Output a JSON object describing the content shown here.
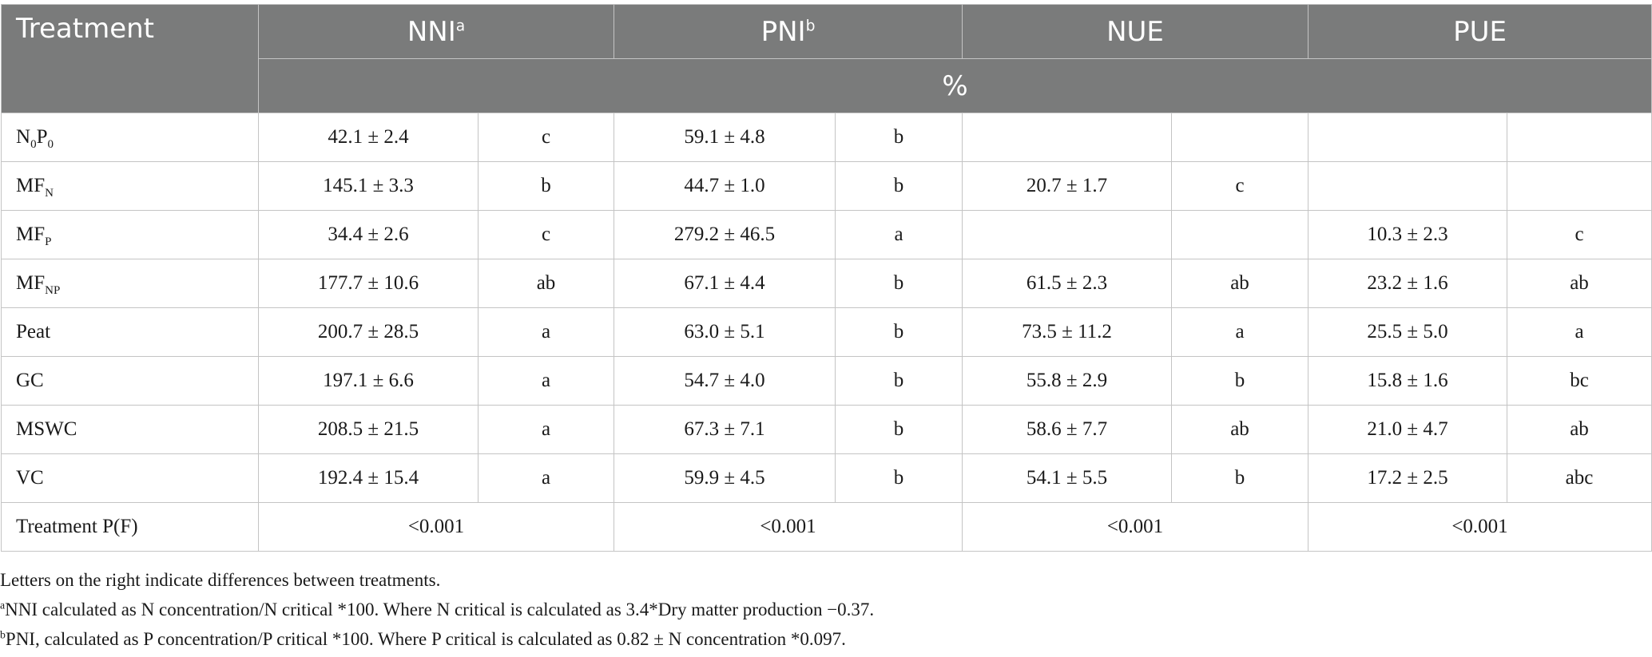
{
  "header": {
    "treatment_label": "Treatment",
    "columns": [
      {
        "label": "NNI",
        "sup": "a"
      },
      {
        "label": "PNI",
        "sup": "b"
      },
      {
        "label": "NUE",
        "sup": ""
      },
      {
        "label": "PUE",
        "sup": ""
      }
    ],
    "unit": "%"
  },
  "rows": [
    {
      "name": "N",
      "sub1": "0",
      "name2": "P",
      "sub2": "0",
      "nni": "42.1 ± 2.4",
      "nni_l": "c",
      "pni": "59.1 ± 4.8",
      "pni_l": "b",
      "nue": "",
      "nue_l": "",
      "pue": "",
      "pue_l": ""
    },
    {
      "name": "MF",
      "sub1": "N",
      "name2": "",
      "sub2": "",
      "nni": "145.1 ± 3.3",
      "nni_l": "b",
      "pni": "44.7 ± 1.0",
      "pni_l": "b",
      "nue": "20.7 ± 1.7",
      "nue_l": "c",
      "pue": "",
      "pue_l": ""
    },
    {
      "name": "MF",
      "sub1": "P",
      "name2": "",
      "sub2": "",
      "nni": "34.4 ± 2.6",
      "nni_l": "c",
      "pni": "279.2 ± 46.5",
      "pni_l": "a",
      "nue": "",
      "nue_l": "",
      "pue": "10.3 ± 2.3",
      "pue_l": "c"
    },
    {
      "name": "MF",
      "sub1": "NP",
      "name2": "",
      "sub2": "",
      "nni": "177.7 ± 10.6",
      "nni_l": "ab",
      "pni": "67.1 ± 4.4",
      "pni_l": "b",
      "nue": "61.5 ± 2.3",
      "nue_l": "ab",
      "pue": "23.2 ± 1.6",
      "pue_l": "ab"
    },
    {
      "name": "Peat",
      "sub1": "",
      "name2": "",
      "sub2": "",
      "nni": "200.7 ± 28.5",
      "nni_l": "a",
      "pni": "63.0 ± 5.1",
      "pni_l": "b",
      "nue": "73.5 ± 11.2",
      "nue_l": "a",
      "pue": "25.5 ± 5.0",
      "pue_l": "a"
    },
    {
      "name": "GC",
      "sub1": "",
      "name2": "",
      "sub2": "",
      "nni": "197.1 ± 6.6",
      "nni_l": "a",
      "pni": "54.7 ± 4.0",
      "pni_l": "b",
      "nue": "55.8 ± 2.9",
      "nue_l": "b",
      "pue": "15.8 ± 1.6",
      "pue_l": "bc"
    },
    {
      "name": "MSWC",
      "sub1": "",
      "name2": "",
      "sub2": "",
      "nni": "208.5 ± 21.5",
      "nni_l": "a",
      "pni": "67.3 ± 7.1",
      "pni_l": "b",
      "nue": "58.6 ± 7.7",
      "nue_l": "ab",
      "pue": "21.0 ± 4.7",
      "pue_l": "ab"
    },
    {
      "name": "VC",
      "sub1": "",
      "name2": "",
      "sub2": "",
      "nni": "192.4 ± 15.4",
      "nni_l": "a",
      "pni": "59.9 ± 4.5",
      "pni_l": "b",
      "nue": "54.1 ± 5.5",
      "nue_l": "b",
      "pue": "17.2 ± 2.5",
      "pue_l": "abc"
    }
  ],
  "pf_row": {
    "label": "Treatment P(F)",
    "nni": "<0.001",
    "pni": "<0.001",
    "nue": "<0.001",
    "pue": "<0.001"
  },
  "notes": {
    "n1": "Letters on the right indicate differences between treatments.",
    "n2_sup": "a",
    "n2": "NNI calculated as N concentration/N critical *100. Where N critical is calculated as 3.4*Dry matter production −0.37.",
    "n3_sup": "b",
    "n3": "PNI, calculated as P concentration/P critical *100. Where P critical is calculated as 0.82 ± N concentration *0.097."
  }
}
